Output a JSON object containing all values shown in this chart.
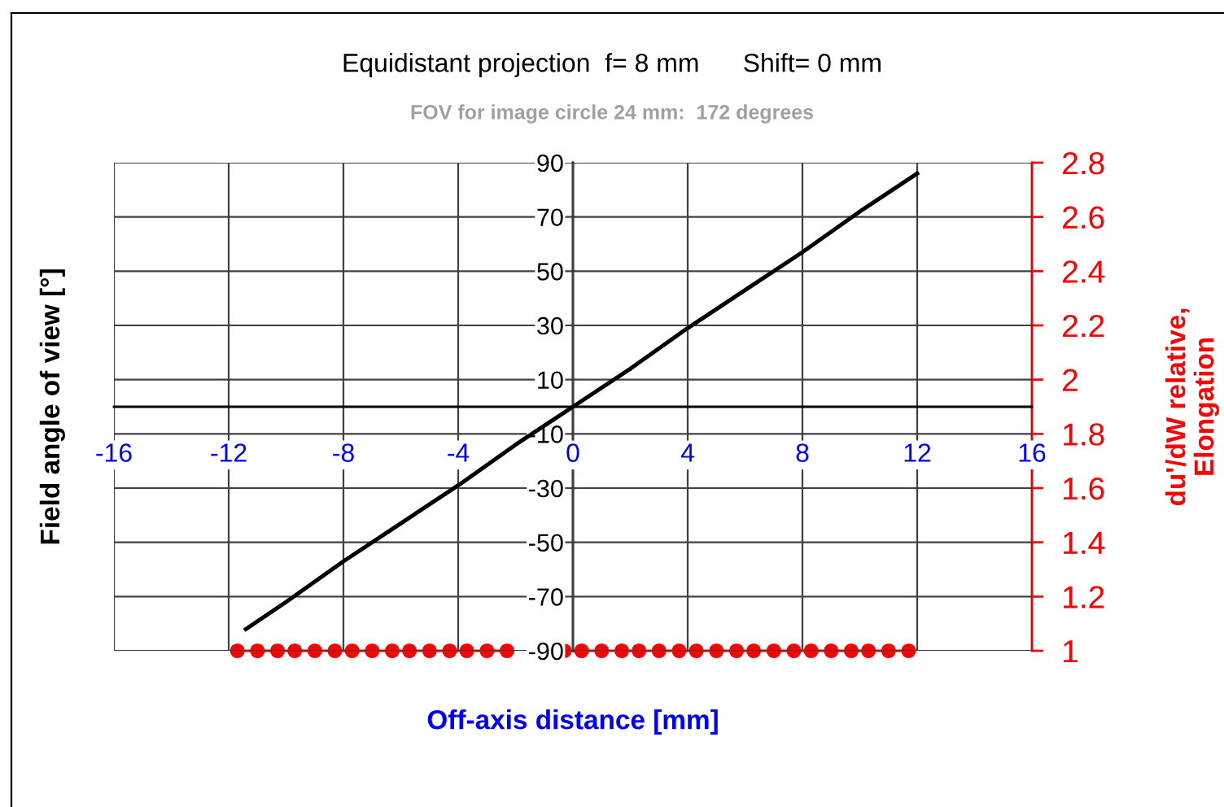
{
  "chart_data": {
    "type": "line",
    "title": "Equidistant projection  f= 8 mm      Shift= 0 mm",
    "subtitle": "FOV for image circle 24 mm:  172 degrees",
    "xlabel": "Off-axis distance [mm]",
    "ylabel": "Field angle of view [°]",
    "y2label": "du'/dW relative,\nElongation",
    "xlim": [
      -16,
      16
    ],
    "xticks": [
      -16,
      -12,
      -8,
      -4,
      0,
      4,
      8,
      12,
      16
    ],
    "ylim": [
      -90,
      90
    ],
    "yticks": [
      -90,
      -70,
      -50,
      -30,
      -10,
      10,
      30,
      50,
      70,
      90
    ],
    "y2lim": [
      1,
      2.8
    ],
    "y2ticks": [
      1,
      1.2,
      1.4,
      1.6,
      1.8,
      2,
      2.2,
      2.4,
      2.6,
      2.8
    ],
    "grid": true,
    "series": [
      {
        "color": "#000000",
        "x": [
          -11.4,
          -10,
          -8,
          -6,
          -4,
          -2,
          0,
          2,
          4,
          6,
          8,
          10,
          12
        ],
        "values": [
          -82,
          -72,
          -57,
          -43,
          -29,
          -14,
          0,
          14,
          29,
          43,
          57,
          72,
          86
        ]
      },
      {
        "color": "#ff0000",
        "axis": "y2",
        "marker": "circle",
        "x": [
          -11.7,
          -11,
          -10.3,
          -9.7,
          -9,
          -8.3,
          -7.7,
          -7,
          -6.3,
          -5.7,
          -5,
          -4.3,
          -3.7,
          -3,
          -2.3,
          -1.7,
          -1,
          -0.3,
          0.3,
          1,
          1.7,
          2.3,
          3,
          3.7,
          4.3,
          5,
          5.7,
          6.3,
          7,
          7.7,
          8.3,
          9,
          9.7,
          10.3,
          11,
          11.7
        ],
        "values": [
          1,
          1,
          1,
          1,
          1,
          1,
          1,
          1,
          1,
          1,
          1,
          1,
          1,
          1,
          1,
          null,
          null,
          1,
          1,
          1,
          1,
          1,
          1,
          1,
          1,
          1,
          1,
          1,
          1,
          1,
          1,
          1,
          1,
          1,
          1,
          1
        ]
      }
    ]
  }
}
